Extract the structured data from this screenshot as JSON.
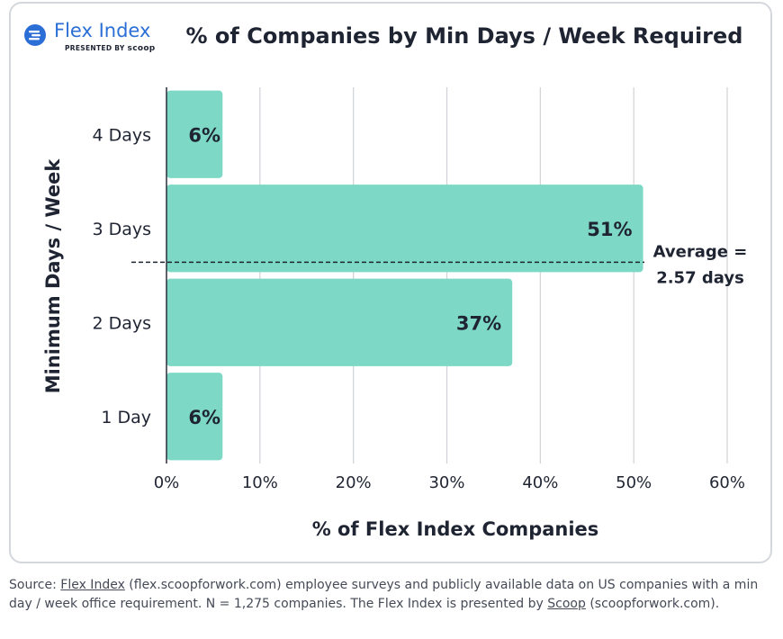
{
  "logo": {
    "name": "Flex Index",
    "sub_prefix": "PRESENTED BY",
    "sub_brand": "scoop"
  },
  "chart_data": {
    "type": "bar",
    "orientation": "horizontal",
    "title": "% of Companies by Min Days / Week Required",
    "xlabel": "% of Flex Index Companies",
    "ylabel": "Minimum Days / Week",
    "categories": [
      "4 Days",
      "3 Days",
      "2 Days",
      "1 Day"
    ],
    "values": [
      6,
      51,
      37,
      6
    ],
    "data_labels": [
      "6%",
      "51%",
      "37%",
      "6%"
    ],
    "xlim": [
      0,
      60
    ],
    "xticks": [
      0,
      10,
      20,
      30,
      40,
      50,
      60
    ],
    "xtick_labels": [
      "0%",
      "10%",
      "20%",
      "30%",
      "40%",
      "50%",
      "60%"
    ],
    "grid": "vertical",
    "bar_color": "#7dd9c6",
    "annotation": {
      "line1": "Average =",
      "line2": "2.57 days",
      "average_days": 2.57
    }
  },
  "source": {
    "prefix": "Source: ",
    "link1": "Flex Index",
    "mid": " (flex.scoopforwork.com) employee surveys and publicly available data on US companies with a min day / week office requirement. N = 1,275 companies. The Flex Index is presented by ",
    "link2": "Scoop",
    "suffix": " (scoopforwork.com)."
  }
}
